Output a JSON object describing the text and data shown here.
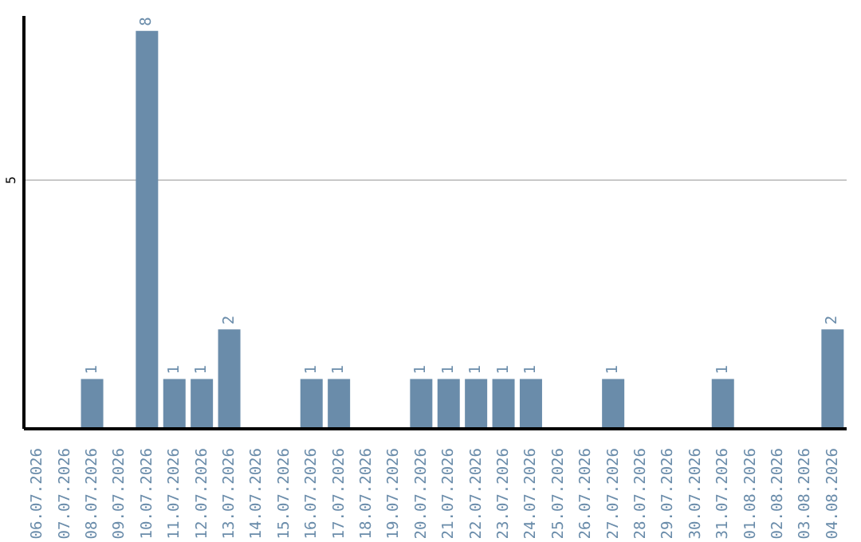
{
  "chart_data": {
    "type": "bar",
    "categories": [
      "06.07.2026",
      "07.07.2026",
      "08.07.2026",
      "09.07.2026",
      "10.07.2026",
      "11.07.2026",
      "12.07.2026",
      "13.07.2026",
      "14.07.2026",
      "15.07.2026",
      "16.07.2026",
      "17.07.2026",
      "18.07.2026",
      "19.07.2026",
      "20.07.2026",
      "21.07.2026",
      "22.07.2026",
      "23.07.2026",
      "24.07.2026",
      "25.07.2026",
      "26.07.2026",
      "27.07.2026",
      "28.07.2026",
      "29.07.2026",
      "30.07.2026",
      "31.07.2026",
      "01.08.2026",
      "02.08.2026",
      "03.08.2026",
      "04.08.2026"
    ],
    "values": [
      0,
      0,
      1,
      0,
      8,
      1,
      1,
      2,
      0,
      0,
      1,
      1,
      0,
      0,
      1,
      1,
      1,
      1,
      1,
      0,
      0,
      1,
      0,
      0,
      0,
      1,
      0,
      0,
      0,
      2
    ],
    "value_labels": [
      null,
      null,
      "1",
      null,
      "8",
      "1",
      "1",
      "2",
      null,
      null,
      "1",
      "1",
      null,
      null,
      "1",
      "1",
      "1",
      "1",
      "1",
      null,
      null,
      "1",
      null,
      null,
      null,
      "1",
      null,
      null,
      null,
      "2"
    ],
    "color": "#6a8caa",
    "ylim": [
      0,
      8.3
    ],
    "yticks": [
      5
    ],
    "grid": "y",
    "legend": false
  }
}
